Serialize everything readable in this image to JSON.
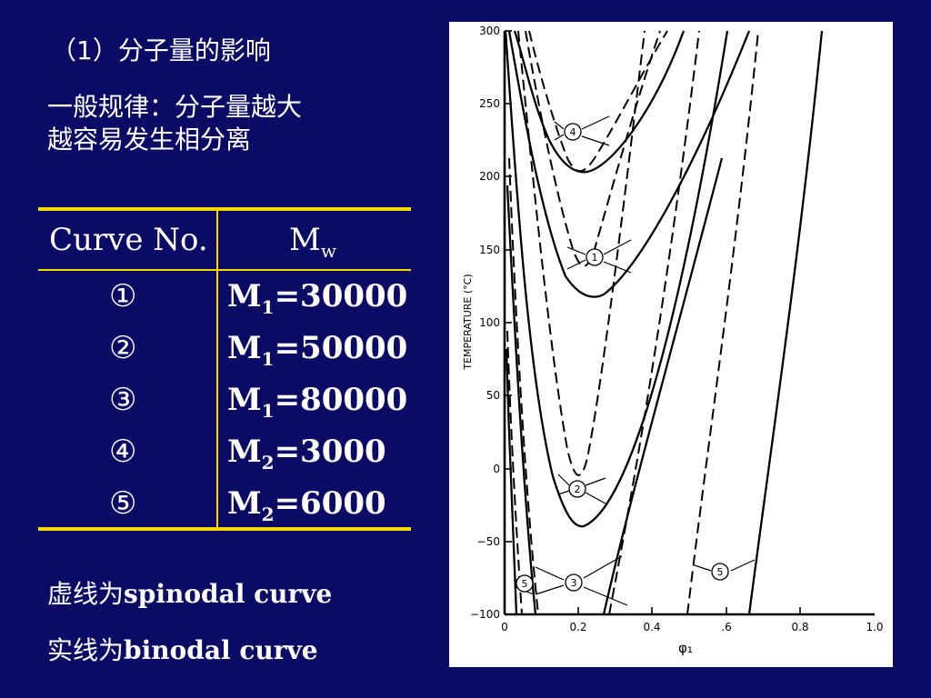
{
  "slide": {
    "heading": "（1）分子量的影响",
    "rule_line1": "一般规律：分子量越大",
    "rule_line2": "越容易发生相分离",
    "note_spinodal_prefix": "虚线为",
    "note_spinodal_term": "spinodal curve",
    "note_binodal_prefix": "实线为",
    "note_binodal_term": "binodal curve"
  },
  "table": {
    "header_curve": "Curve No.",
    "header_mw_main": "M",
    "header_mw_sub": "w",
    "rows": [
      {
        "no": "①",
        "m": "M",
        "sub": "1",
        "value": "=30000"
      },
      {
        "no": "②",
        "m": "M",
        "sub": "1",
        "value": "=50000"
      },
      {
        "no": "③",
        "m": "M",
        "sub": "1",
        "value": "=80000"
      },
      {
        "no": "④",
        "m": "M",
        "sub": "2",
        "value": "=3000"
      },
      {
        "no": "⑤",
        "m": "M",
        "sub": "2",
        "value": "=6000"
      }
    ]
  },
  "figure": {
    "ylabel": "TEMPERATURE (°C)",
    "xlabel": "φ₁",
    "y_ticks": [
      "300",
      "250",
      "200",
      "150",
      "100",
      "50",
      "0",
      "−50",
      "−100"
    ],
    "x_ticks": [
      "0",
      "0.2",
      "0.4",
      ".6",
      "0.8",
      "1.0"
    ],
    "curve_labels": [
      "4",
      "1",
      "2",
      "3",
      "5",
      "5"
    ],
    "line_color": "#000000"
  }
}
